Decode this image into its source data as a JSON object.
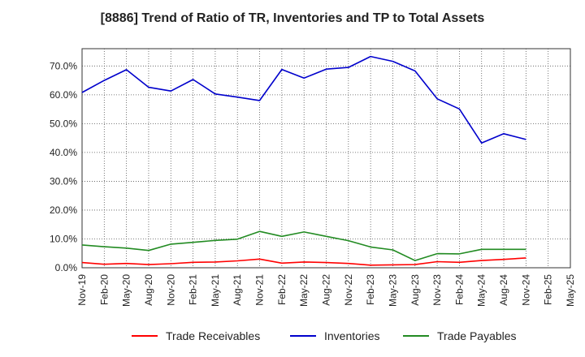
{
  "chart_data": {
    "type": "line",
    "title": "[8886]  Trend of Ratio of TR, Inventories and TP to Total Assets",
    "xlabel": "",
    "ylabel": "",
    "ylim": [
      0,
      76
    ],
    "yticks": [
      0,
      10,
      20,
      30,
      40,
      50,
      60,
      70
    ],
    "ytick_labels": [
      "0.0%",
      "10.0%",
      "20.0%",
      "30.0%",
      "40.0%",
      "50.0%",
      "60.0%",
      "70.0%"
    ],
    "x": [
      "Nov-19",
      "Feb-20",
      "May-20",
      "Aug-20",
      "Nov-20",
      "Feb-21",
      "May-21",
      "Aug-21",
      "Nov-21",
      "Feb-22",
      "May-22",
      "Aug-22",
      "Nov-22",
      "Feb-23",
      "May-23",
      "Aug-23",
      "Nov-23",
      "Feb-24",
      "May-24",
      "Aug-24",
      "Nov-24",
      "Feb-25",
      "May-25"
    ],
    "grid": true,
    "legend_position": "bottom",
    "series": [
      {
        "name": "Trade Receivables",
        "color": "#ff0000",
        "values": [
          1.8,
          1.2,
          1.5,
          1.1,
          1.4,
          1.9,
          2.0,
          2.4,
          3.0,
          1.6,
          2.0,
          1.8,
          1.5,
          0.9,
          1.0,
          1.1,
          2.1,
          1.9,
          2.5,
          2.9,
          3.4,
          null,
          null
        ]
      },
      {
        "name": "Inventories",
        "color": "#0000cc",
        "values": [
          60.8,
          65.0,
          68.7,
          62.6,
          61.3,
          65.3,
          60.3,
          59.2,
          58.0,
          68.8,
          65.8,
          68.9,
          69.5,
          73.3,
          71.6,
          68.3,
          58.6,
          55.1,
          43.3,
          46.5,
          44.5,
          null,
          null
        ]
      },
      {
        "name": "Trade Payables",
        "color": "#228b22",
        "values": [
          7.9,
          7.3,
          6.8,
          6.0,
          8.2,
          8.8,
          9.5,
          9.9,
          12.6,
          10.9,
          12.4,
          10.9,
          9.4,
          7.2,
          6.2,
          2.5,
          4.9,
          4.8,
          6.4,
          6.4,
          6.4,
          null,
          null
        ]
      }
    ]
  }
}
